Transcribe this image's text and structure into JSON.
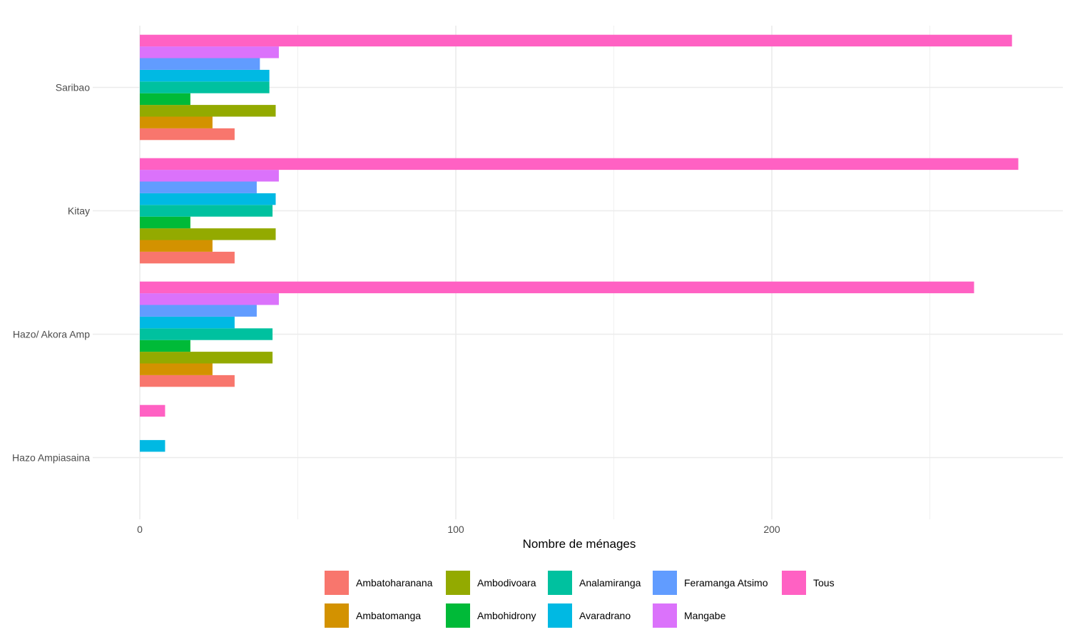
{
  "chart_data": {
    "type": "bar",
    "orientation": "horizontal",
    "title": "",
    "xlabel": "Nombre de ménages",
    "ylabel": "",
    "xlim": [
      0,
      292
    ],
    "x_ticks": [
      0,
      100,
      200
    ],
    "x_ticks_labels": [
      "0",
      "100",
      "200"
    ],
    "grid": true,
    "legend_position": "bottom",
    "categories": [
      "Saribao",
      "Kitay",
      "Hazo/ Akora Amp",
      "Hazo Ampiasaina"
    ],
    "series": [
      {
        "name": "Ambatoharanana",
        "color": "#F8766D",
        "values": [
          30,
          30,
          30,
          null
        ]
      },
      {
        "name": "Ambatomanga",
        "color": "#D39200",
        "values": [
          23,
          23,
          23,
          null
        ]
      },
      {
        "name": "Ambodivoara",
        "color": "#93AA00",
        "values": [
          43,
          43,
          42,
          null
        ]
      },
      {
        "name": "Ambohidrony",
        "color": "#00BA38",
        "values": [
          16,
          16,
          16,
          null
        ]
      },
      {
        "name": "Analamiranga",
        "color": "#00C19F",
        "values": [
          41,
          42,
          42,
          null
        ]
      },
      {
        "name": "Avaradrano",
        "color": "#00B9E3",
        "values": [
          41,
          43,
          30,
          8
        ]
      },
      {
        "name": "Feramanga Atsimo",
        "color": "#619CFF",
        "values": [
          38,
          37,
          37,
          null
        ]
      },
      {
        "name": "Mangabe",
        "color": "#DB72FB",
        "values": [
          44,
          44,
          44,
          null
        ]
      },
      {
        "name": "Tous",
        "color": "#FF61C3",
        "values": [
          276,
          278,
          264,
          8
        ]
      }
    ]
  },
  "legend": {
    "rows": [
      [
        "Ambatoharanana",
        "Ambodivoara",
        "Analamiranga",
        "Feramanga Atsimo",
        "Tous"
      ],
      [
        "Ambatomanga",
        "Ambohidrony",
        "Avaradrano",
        "Mangabe"
      ]
    ]
  }
}
